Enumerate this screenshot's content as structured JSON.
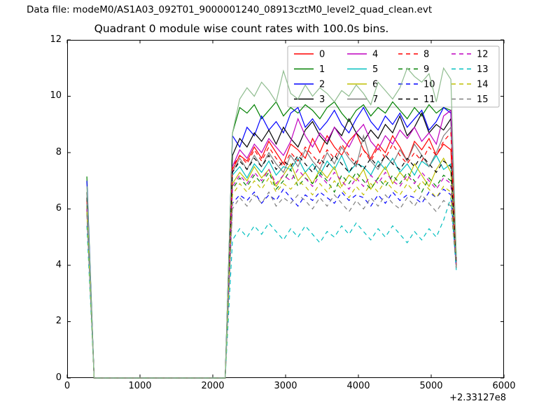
{
  "window": {
    "background": "#ffffff"
  },
  "header": {
    "datafile_label": "Data file: modeM0/AS1A03_092T01_9000001240_08913cztM0_level2_quad_clean.evt"
  },
  "chart_data": {
    "type": "line",
    "title": "Quadrant 0 module wise count rates with 100.0s bins.",
    "xlabel": "",
    "ylabel": "",
    "grid": false,
    "x_axis": {
      "range": [
        0,
        6000
      ],
      "tick_values": [
        0,
        1000,
        2000,
        3000,
        4000,
        5000,
        6000
      ],
      "tick_labels": [
        "0",
        "1000",
        "2000",
        "3000",
        "4000",
        "5000",
        "6000"
      ],
      "offset_label": "+2.33127e8"
    },
    "y_axis": {
      "range": [
        0,
        12
      ],
      "tick_values": [
        0,
        2,
        4,
        6,
        8,
        10,
        12
      ],
      "tick_labels": [
        "0",
        "2",
        "4",
        "6",
        "8",
        "10",
        "12"
      ]
    },
    "legend": {
      "position": "upper right",
      "columns": 4,
      "rows": 4
    },
    "x_bins": {
      "spike_x": 270,
      "zero_start": 370,
      "zero_end": 2170,
      "plateau_start": 2270,
      "step": 100,
      "end_x": 5345
    },
    "series": [
      {
        "label": "0",
        "color": "#ff0000",
        "linestyle": "solid",
        "in_legend": true,
        "y_spike": 6.3,
        "y_end": 4.1,
        "y_plateau": [
          7.4,
          7.9,
          7.7,
          8.2,
          7.8,
          8.4,
          8.0,
          7.6,
          8.3,
          8.1,
          7.8,
          8.5,
          8.0,
          8.6,
          8.2,
          7.9,
          8.4,
          8.7,
          8.1,
          7.8,
          8.3,
          8.0,
          8.6,
          8.2,
          7.7,
          8.4,
          8.1,
          8.5,
          7.9,
          8.3,
          8.1
        ]
      },
      {
        "label": "1",
        "color": "#008000",
        "linestyle": "solid",
        "in_legend": true,
        "y_spike": 7.15,
        "y_end": 4.3,
        "y_plateau": [
          8.7,
          9.6,
          9.4,
          9.7,
          9.2,
          9.5,
          9.8,
          9.3,
          9.6,
          9.4,
          9.7,
          9.5,
          9.2,
          9.6,
          9.8,
          9.4,
          9.1,
          9.5,
          9.7,
          9.3,
          9.6,
          9.4,
          9.8,
          9.5,
          9.2,
          9.6,
          9.3,
          9.7,
          9.4,
          9.6,
          9.5
        ]
      },
      {
        "label": "2",
        "color": "#0000ff",
        "linestyle": "solid",
        "in_legend": true,
        "y_spike": 7.0,
        "y_end": 4.2,
        "y_plateau": [
          8.6,
          8.2,
          8.9,
          8.6,
          9.3,
          8.8,
          9.1,
          8.7,
          9.4,
          9.6,
          8.9,
          9.2,
          8.8,
          9.1,
          9.5,
          9.0,
          8.7,
          9.2,
          9.6,
          9.1,
          8.8,
          9.3,
          9.0,
          9.4,
          8.9,
          9.2,
          9.5,
          8.8,
          9.1,
          9.6,
          9.4
        ]
      },
      {
        "label": "3",
        "color": "#000000",
        "linestyle": "solid",
        "in_legend": true,
        "y_spike": 6.6,
        "y_end": 4.1,
        "y_plateau": [
          7.9,
          8.5,
          8.2,
          8.7,
          8.4,
          8.8,
          8.3,
          8.9,
          8.5,
          8.2,
          8.8,
          9.1,
          8.6,
          8.3,
          8.9,
          8.6,
          9.2,
          8.7,
          8.4,
          8.8,
          8.5,
          9.0,
          8.7,
          9.3,
          8.6,
          8.9,
          9.4,
          8.7,
          9.0,
          8.8,
          9.2
        ]
      },
      {
        "label": "4",
        "color": "#bf00bf",
        "linestyle": "solid",
        "in_legend": true,
        "y_spike": 6.4,
        "y_end": 4.0,
        "y_plateau": [
          7.5,
          8.1,
          7.8,
          8.3,
          8.0,
          8.5,
          8.2,
          7.9,
          8.4,
          9.2,
          8.6,
          8.2,
          8.7,
          8.4,
          8.9,
          8.5,
          8.2,
          8.7,
          9.0,
          8.4,
          8.1,
          8.6,
          8.3,
          8.8,
          8.5,
          8.9,
          8.4,
          8.7,
          8.3,
          9.3,
          9.5
        ]
      },
      {
        "label": "5",
        "color": "#00bfbf",
        "linestyle": "solid",
        "in_legend": true,
        "y_spike": 6.2,
        "y_end": 3.9,
        "y_plateau": [
          7.2,
          7.5,
          7.1,
          7.6,
          7.3,
          7.7,
          7.2,
          7.5,
          7.4,
          7.8,
          7.3,
          7.6,
          7.2,
          7.7,
          7.4,
          7.9,
          7.3,
          7.6,
          7.5,
          7.2,
          7.7,
          7.4,
          7.8,
          7.3,
          7.6,
          7.2,
          7.7,
          7.5,
          7.9,
          7.4,
          7.6
        ]
      },
      {
        "label": "6",
        "color": "#bfbf00",
        "linestyle": "solid",
        "in_legend": true,
        "y_spike": 6.1,
        "y_end": 4.0,
        "y_plateau": [
          6.9,
          7.3,
          7.0,
          7.5,
          7.1,
          7.4,
          6.8,
          7.2,
          7.6,
          7.0,
          7.3,
          6.9,
          7.4,
          7.1,
          7.5,
          6.8,
          7.2,
          7.0,
          7.4,
          6.7,
          7.1,
          7.5,
          6.9,
          7.3,
          7.0,
          7.6,
          7.2,
          6.8,
          7.4,
          7.8,
          7.3
        ]
      },
      {
        "label": "7",
        "color": "#7f7f7f",
        "linestyle": "solid",
        "in_legend": true,
        "y_spike": 6.5,
        "y_end": 4.1,
        "y_plateau": [
          7.3,
          7.8,
          7.4,
          7.9,
          7.5,
          8.0,
          7.6,
          7.3,
          7.9,
          7.5,
          8.1,
          7.7,
          7.4,
          8.0,
          7.6,
          8.2,
          7.8,
          7.5,
          8.6,
          7.7,
          7.4,
          7.9,
          7.6,
          8.1,
          7.7,
          8.3,
          7.9,
          7.5,
          8.0,
          8.6,
          8.9
        ]
      },
      {
        "label": "8",
        "color": "#ff0000",
        "linestyle": "dashed",
        "in_legend": true,
        "y_spike": 6.3,
        "y_end": 4.0,
        "y_plateau": [
          7.5,
          7.9,
          7.6,
          8.1,
          7.7,
          8.2,
          7.8,
          7.5,
          8.0,
          7.7,
          8.2,
          7.9,
          7.6,
          8.1,
          7.8,
          8.3,
          7.9,
          7.6,
          8.1,
          7.7,
          8.2,
          7.8,
          8.3,
          7.9,
          7.6,
          8.0,
          7.7,
          8.2,
          7.9,
          8.4,
          8.7
        ]
      },
      {
        "label": "9",
        "color": "#008000",
        "linestyle": "dashed",
        "in_legend": true,
        "y_spike": 6.0,
        "y_end": 3.9,
        "y_plateau": [
          6.7,
          7.1,
          6.8,
          7.2,
          6.9,
          7.3,
          6.7,
          7.0,
          7.4,
          6.8,
          7.1,
          6.9,
          7.3,
          7.0,
          6.6,
          7.2,
          6.9,
          7.3,
          7.0,
          6.7,
          7.1,
          6.8,
          7.2,
          6.9,
          7.3,
          7.0,
          6.6,
          7.1,
          6.8,
          7.2,
          7.0
        ]
      },
      {
        "label": "10",
        "color": "#0000ff",
        "linestyle": "dashed",
        "in_legend": true,
        "y_spike": 5.9,
        "y_end": 3.9,
        "y_plateau": [
          6.2,
          6.5,
          6.3,
          6.6,
          6.2,
          6.5,
          6.3,
          6.7,
          6.4,
          6.1,
          6.5,
          6.3,
          6.6,
          6.4,
          6.2,
          6.6,
          6.3,
          6.5,
          6.4,
          6.1,
          6.5,
          6.2,
          6.6,
          6.3,
          6.5,
          6.4,
          6.2,
          6.6,
          6.4,
          6.7,
          6.5
        ]
      },
      {
        "label": "11",
        "color": "#000000",
        "linestyle": "dashed",
        "in_legend": true,
        "y_spike": 6.4,
        "y_end": 4.0,
        "y_plateau": [
          7.3,
          7.7,
          7.4,
          7.8,
          7.5,
          7.9,
          7.4,
          7.7,
          7.5,
          7.9,
          7.6,
          7.3,
          7.8,
          7.5,
          7.9,
          7.6,
          7.3,
          7.7,
          7.4,
          7.8,
          7.5,
          7.9,
          7.6,
          7.4,
          7.8,
          7.5,
          7.9,
          7.6,
          7.3,
          7.7,
          7.5
        ]
      },
      {
        "label": "12",
        "color": "#bf00bf",
        "linestyle": "dashed",
        "in_legend": true,
        "y_spike": 6.0,
        "y_end": 3.9,
        "y_plateau": [
          6.8,
          7.2,
          6.9,
          7.3,
          7.0,
          7.4,
          6.9,
          7.2,
          7.0,
          7.4,
          7.1,
          6.8,
          7.2,
          6.9,
          7.3,
          7.0,
          6.7,
          7.1,
          6.8,
          7.2,
          6.9,
          7.3,
          7.0,
          6.8,
          7.2,
          6.9,
          7.3,
          7.0,
          6.7,
          7.1,
          6.9
        ]
      },
      {
        "label": "13",
        "color": "#00bfbf",
        "linestyle": "dashed",
        "in_legend": true,
        "y_spike": 5.4,
        "y_end": 3.8,
        "y_plateau": [
          4.9,
          5.3,
          5.0,
          5.4,
          5.1,
          5.5,
          5.2,
          4.9,
          5.3,
          5.0,
          5.4,
          5.1,
          4.8,
          5.2,
          5.0,
          5.4,
          5.1,
          5.5,
          5.2,
          4.9,
          5.3,
          5.0,
          5.4,
          5.1,
          4.8,
          5.2,
          4.9,
          5.3,
          5.0,
          5.6,
          6.4
        ]
      },
      {
        "label": "14",
        "color": "#bfbf00",
        "linestyle": "dashed",
        "in_legend": true,
        "y_spike": 5.9,
        "y_end": 3.9,
        "y_plateau": [
          6.5,
          6.9,
          6.6,
          7.0,
          6.7,
          7.1,
          6.6,
          6.9,
          6.7,
          7.0,
          6.8,
          6.5,
          6.9,
          6.6,
          7.0,
          6.7,
          6.4,
          6.8,
          6.5,
          6.9,
          6.6,
          7.0,
          6.7,
          6.5,
          6.9,
          6.6,
          7.0,
          6.7,
          6.4,
          6.8,
          6.6
        ]
      },
      {
        "label": "15",
        "color": "#7f7f7f",
        "linestyle": "dashed",
        "in_legend": true,
        "y_spike": 5.8,
        "y_end": 3.9,
        "y_plateau": [
          6.0,
          6.4,
          6.1,
          6.5,
          6.2,
          6.6,
          6.1,
          6.4,
          6.2,
          6.5,
          6.3,
          6.0,
          6.4,
          6.1,
          6.5,
          6.2,
          5.9,
          6.3,
          6.0,
          6.4,
          6.1,
          6.5,
          6.2,
          6.0,
          6.4,
          6.1,
          6.5,
          6.2,
          5.9,
          6.3,
          6.1
        ]
      },
      {
        "label": "",
        "color": "#8fbc8f",
        "linestyle": "solid",
        "in_legend": false,
        "y_spike": 6.8,
        "y_end": 4.3,
        "y_plateau": [
          8.7,
          9.9,
          10.3,
          10.0,
          10.5,
          10.2,
          9.8,
          10.9,
          10.1,
          9.9,
          10.4,
          10.0,
          10.3,
          10.1,
          9.8,
          10.2,
          10.0,
          10.4,
          10.1,
          9.7,
          10.5,
          10.2,
          9.9,
          10.3,
          11.0,
          10.7,
          10.5,
          10.8,
          9.8,
          11.0,
          10.6
        ]
      }
    ]
  },
  "colors": {
    "axes_frame": "#000000",
    "legend_border": "#b3b3b3",
    "legend_background": "#ffffff",
    "text": "#000000"
  }
}
